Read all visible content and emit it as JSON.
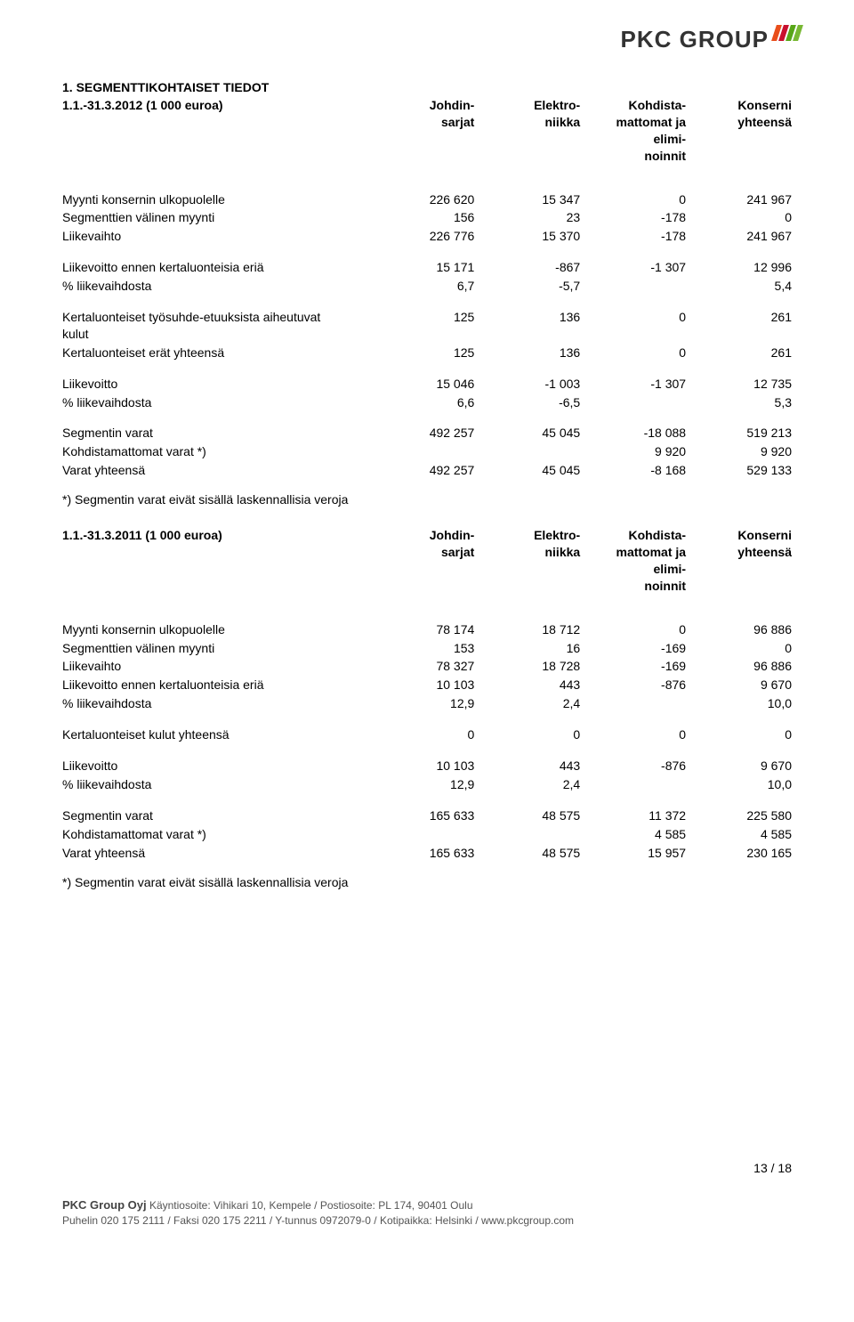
{
  "logo": {
    "text": "PKC GROUP",
    "bar_colors": [
      "#e94e1b",
      "#c8102e",
      "#58a618",
      "#78b833"
    ]
  },
  "section_title": "1. SEGMENTTIKOHTAISET TIEDOT",
  "table1": {
    "period_label": "1.1.-31.3.2012 (1 000 euroa)",
    "columns": [
      "Johdin-\nsarjat",
      "Elektro-\nniikka",
      "Kohdista-\nmattomat ja\nelimi-\nnoinnit",
      "Konserni\nyhteensä"
    ],
    "groups": [
      {
        "rows": [
          {
            "label": "Myynti konsernin ulkopuolelle",
            "cells": [
              "226 620",
              "15 347",
              "0",
              "241 967"
            ]
          },
          {
            "label": "Segmenttien välinen myynti",
            "cells": [
              "156",
              "23",
              "-178",
              "0"
            ]
          },
          {
            "label": "Liikevaihto",
            "cells": [
              "226 776",
              "15 370",
              "-178",
              "241 967"
            ]
          }
        ]
      },
      {
        "rows": [
          {
            "label": "Liikevoitto ennen kertaluonteisia eriä",
            "cells": [
              "15 171",
              "-867",
              "-1 307",
              "12 996"
            ]
          },
          {
            "label": "   % liikevaihdosta",
            "cells": [
              "6,7",
              "-5,7",
              "",
              "5,4"
            ]
          }
        ]
      },
      {
        "rows": [
          {
            "label": "Kertaluonteiset työsuhde-etuuksista aiheutuvat\nkulut",
            "cells": [
              "125",
              "136",
              "0",
              "261"
            ]
          },
          {
            "label": "Kertaluonteiset erät yhteensä",
            "cells": [
              "125",
              "136",
              "0",
              "261"
            ]
          }
        ]
      },
      {
        "rows": [
          {
            "label": "Liikevoitto",
            "cells": [
              "15 046",
              "-1 003",
              "-1 307",
              "12 735"
            ]
          },
          {
            "label": "   % liikevaihdosta",
            "cells": [
              "6,6",
              "-6,5",
              "",
              "5,3"
            ]
          }
        ]
      },
      {
        "rows": [
          {
            "label": "Segmentin varat",
            "cells": [
              "492 257",
              "45 045",
              "-18 088",
              "519 213"
            ]
          },
          {
            "label": "Kohdistamattomat varat *)",
            "cells": [
              "",
              "",
              "9 920",
              "9 920"
            ]
          },
          {
            "label": "Varat yhteensä",
            "cells": [
              "492 257",
              "45 045",
              "-8 168",
              "529 133"
            ]
          }
        ]
      }
    ],
    "footnote": "*) Segmentin varat eivät sisällä laskennallisia veroja"
  },
  "table2": {
    "period_label": "1.1.-31.3.2011 (1 000 euroa)",
    "columns": [
      "Johdin-\nsarjat",
      "Elektro-\nniikka",
      "Kohdista-\nmattomat ja\nelimi-\nnoinnit",
      "Konserni\nyhteensä"
    ],
    "groups": [
      {
        "rows": [
          {
            "label": "Myynti konsernin ulkopuolelle",
            "cells": [
              "78 174",
              "18 712",
              "0",
              "96 886"
            ]
          },
          {
            "label": "Segmenttien välinen myynti",
            "cells": [
              "153",
              "16",
              "-169",
              "0"
            ]
          },
          {
            "label": "Liikevaihto",
            "cells": [
              "78 327",
              "18 728",
              "-169",
              "96 886"
            ]
          },
          {
            "label": "Liikevoitto ennen kertaluonteisia eriä",
            "cells": [
              "10 103",
              "443",
              "-876",
              "9 670"
            ]
          },
          {
            "label": "   % liikevaihdosta",
            "cells": [
              "12,9",
              "2,4",
              "",
              "10,0"
            ]
          }
        ]
      },
      {
        "rows": [
          {
            "label": "Kertaluonteiset kulut yhteensä",
            "cells": [
              "0",
              "0",
              "0",
              "0"
            ]
          }
        ]
      },
      {
        "rows": [
          {
            "label": "Liikevoitto",
            "cells": [
              "10 103",
              "443",
              "-876",
              "9 670"
            ]
          },
          {
            "label": "   % liikevaihdosta",
            "cells": [
              "12,9",
              "2,4",
              "",
              "10,0"
            ]
          }
        ]
      },
      {
        "rows": [
          {
            "label": "Segmentin varat",
            "cells": [
              "165 633",
              "48 575",
              "11 372",
              "225 580"
            ]
          },
          {
            "label": "Kohdistamattomat varat *)",
            "cells": [
              "",
              "",
              "4 585",
              "4 585"
            ]
          },
          {
            "label": "Varat yhteensä",
            "cells": [
              "165 633",
              "48 575",
              "15 957",
              "230 165"
            ]
          }
        ]
      }
    ],
    "footnote": "*) Segmentin varat eivät sisällä laskennallisia veroja"
  },
  "page_number": "13 / 18",
  "footer": {
    "company": "PKC Group Oyj",
    "line1_rest": " Käyntiosoite: Vihikari 10, Kempele / Postiosoite: PL 174, 90401 Oulu",
    "line2": "Puhelin 020 175 2111 / Faksi 020 175 2211 / Y-tunnus 0972079-0 / Kotipaikka: Helsinki / www.pkcgroup.com"
  }
}
